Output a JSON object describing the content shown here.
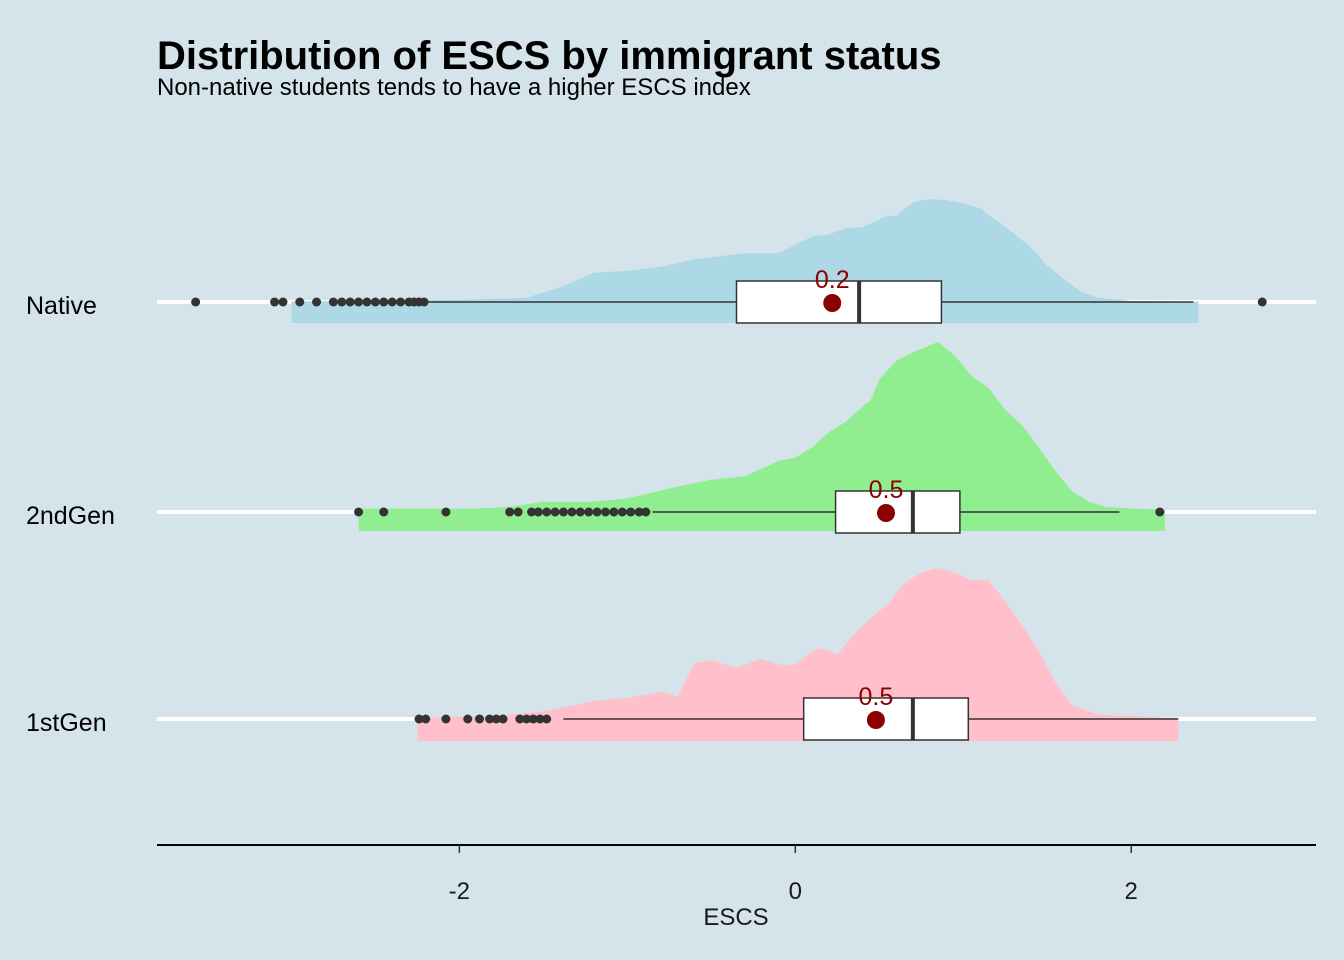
{
  "chart_data": {
    "type": "raincloud",
    "title": "Distribution of ESCS by immigrant status",
    "subtitle": "Non-native students tends to have a higher ESCS index",
    "xlabel": "ESCS",
    "ylabel": "",
    "xlim": [
      -3.8,
      3.1
    ],
    "xticks": [
      {
        "value": -2,
        "label": "-2"
      },
      {
        "value": 0,
        "label": "0"
      },
      {
        "value": 2,
        "label": "2"
      }
    ],
    "categories": [
      "Native",
      "2ndGen",
      "1stGen"
    ],
    "mean_color": "#8b0000",
    "series": [
      {
        "name": "Native",
        "color": "#add8e6",
        "density": [
          [
            -3.0,
            0.005
          ],
          [
            -2.7,
            0.01
          ],
          [
            -2.4,
            0.015
          ],
          [
            -2.0,
            0.02
          ],
          [
            -1.6,
            0.04
          ],
          [
            -1.4,
            0.14
          ],
          [
            -1.2,
            0.28
          ],
          [
            -1.0,
            0.3
          ],
          [
            -0.8,
            0.34
          ],
          [
            -0.6,
            0.41
          ],
          [
            -0.4,
            0.45
          ],
          [
            -0.3,
            0.47
          ],
          [
            -0.1,
            0.47
          ],
          [
            0.1,
            0.63
          ],
          [
            0.2,
            0.65
          ],
          [
            0.3,
            0.71
          ],
          [
            0.4,
            0.72
          ],
          [
            0.55,
            0.83
          ],
          [
            0.6,
            0.83
          ],
          [
            0.7,
            0.96
          ],
          [
            0.8,
            0.99
          ],
          [
            0.9,
            0.98
          ],
          [
            1.0,
            0.95
          ],
          [
            1.1,
            0.9
          ],
          [
            1.2,
            0.78
          ],
          [
            1.3,
            0.66
          ],
          [
            1.4,
            0.53
          ],
          [
            1.5,
            0.35
          ],
          [
            1.6,
            0.22
          ],
          [
            1.7,
            0.1
          ],
          [
            1.8,
            0.04
          ],
          [
            2.0,
            0.01
          ],
          [
            2.4,
            0.003
          ]
        ],
        "box": {
          "min": -2.2,
          "q1": -0.35,
          "median": 0.38,
          "q3": 0.87,
          "max": 2.37
        },
        "mean": 0.22,
        "mean_label": "0.2",
        "outliers": [
          -3.57,
          -3.1,
          -3.05,
          -2.95,
          -2.85,
          -2.75,
          -2.7,
          -2.65,
          -2.6,
          -2.55,
          -2.5,
          -2.45,
          -2.4,
          -2.35,
          -2.3,
          -2.27,
          -2.24,
          -2.21,
          2.78
        ]
      },
      {
        "name": "2ndGen",
        "color": "#90ee90",
        "density": [
          [
            -2.6,
            0.02
          ],
          [
            -2.3,
            0.02
          ],
          [
            -1.9,
            0.02
          ],
          [
            -1.7,
            0.03
          ],
          [
            -1.5,
            0.06
          ],
          [
            -1.2,
            0.06
          ],
          [
            -1.0,
            0.08
          ],
          [
            -0.7,
            0.15
          ],
          [
            -0.5,
            0.19
          ],
          [
            -0.3,
            0.21
          ],
          [
            -0.1,
            0.3
          ],
          [
            0.0,
            0.32
          ],
          [
            0.1,
            0.38
          ],
          [
            0.2,
            0.47
          ],
          [
            0.3,
            0.53
          ],
          [
            0.4,
            0.62
          ],
          [
            0.45,
            0.66
          ],
          [
            0.5,
            0.78
          ],
          [
            0.6,
            0.89
          ],
          [
            0.7,
            0.94
          ],
          [
            0.8,
            0.98
          ],
          [
            0.85,
            1.0
          ],
          [
            0.95,
            0.92
          ],
          [
            1.05,
            0.8
          ],
          [
            1.15,
            0.73
          ],
          [
            1.25,
            0.6
          ],
          [
            1.35,
            0.51
          ],
          [
            1.45,
            0.38
          ],
          [
            1.55,
            0.24
          ],
          [
            1.65,
            0.12
          ],
          [
            1.75,
            0.06
          ],
          [
            1.85,
            0.03
          ],
          [
            2.0,
            0.02
          ],
          [
            2.2,
            0.015
          ]
        ],
        "box": {
          "min": -0.85,
          "q1": 0.24,
          "median": 0.7,
          "q3": 0.98,
          "max": 1.93
        },
        "mean": 0.54,
        "mean_label": "0.5",
        "outliers": [
          -2.6,
          -2.45,
          -2.08,
          -1.7,
          -1.65,
          -1.57,
          -1.53,
          -1.48,
          -1.43,
          -1.38,
          -1.33,
          -1.28,
          -1.23,
          -1.18,
          -1.13,
          -1.08,
          -1.03,
          -0.98,
          -0.93,
          -0.89,
          2.17
        ]
      },
      {
        "name": "1stGen",
        "color": "#ffc0cb",
        "density": [
          [
            -2.25,
            0.01
          ],
          [
            -1.8,
            0.02
          ],
          [
            -1.5,
            0.05
          ],
          [
            -1.2,
            0.12
          ],
          [
            -1.0,
            0.14
          ],
          [
            -0.8,
            0.18
          ],
          [
            -0.7,
            0.15
          ],
          [
            -0.6,
            0.37
          ],
          [
            -0.5,
            0.39
          ],
          [
            -0.35,
            0.34
          ],
          [
            -0.2,
            0.4
          ],
          [
            -0.1,
            0.36
          ],
          [
            0.0,
            0.36
          ],
          [
            0.1,
            0.45
          ],
          [
            0.15,
            0.47
          ],
          [
            0.25,
            0.43
          ],
          [
            0.35,
            0.56
          ],
          [
            0.45,
            0.67
          ],
          [
            0.55,
            0.76
          ],
          [
            0.65,
            0.9
          ],
          [
            0.75,
            0.97
          ],
          [
            0.85,
            1.0
          ],
          [
            0.95,
            0.97
          ],
          [
            1.05,
            0.92
          ],
          [
            1.15,
            0.92
          ],
          [
            1.25,
            0.78
          ],
          [
            1.35,
            0.62
          ],
          [
            1.45,
            0.45
          ],
          [
            1.55,
            0.24
          ],
          [
            1.65,
            0.09
          ],
          [
            1.8,
            0.03
          ],
          [
            2.0,
            0.02
          ],
          [
            2.2,
            0.01
          ],
          [
            2.28,
            0.01
          ]
        ],
        "box": {
          "min": -1.38,
          "q1": 0.05,
          "median": 0.7,
          "q3": 1.03,
          "max": 2.28
        },
        "mean": 0.48,
        "mean_label": "0.5",
        "outliers": [
          -2.24,
          -2.2,
          -2.08,
          -1.95,
          -1.88,
          -1.82,
          -1.78,
          -1.74,
          -1.64,
          -1.6,
          -1.56,
          -1.52,
          -1.48
        ]
      }
    ]
  }
}
